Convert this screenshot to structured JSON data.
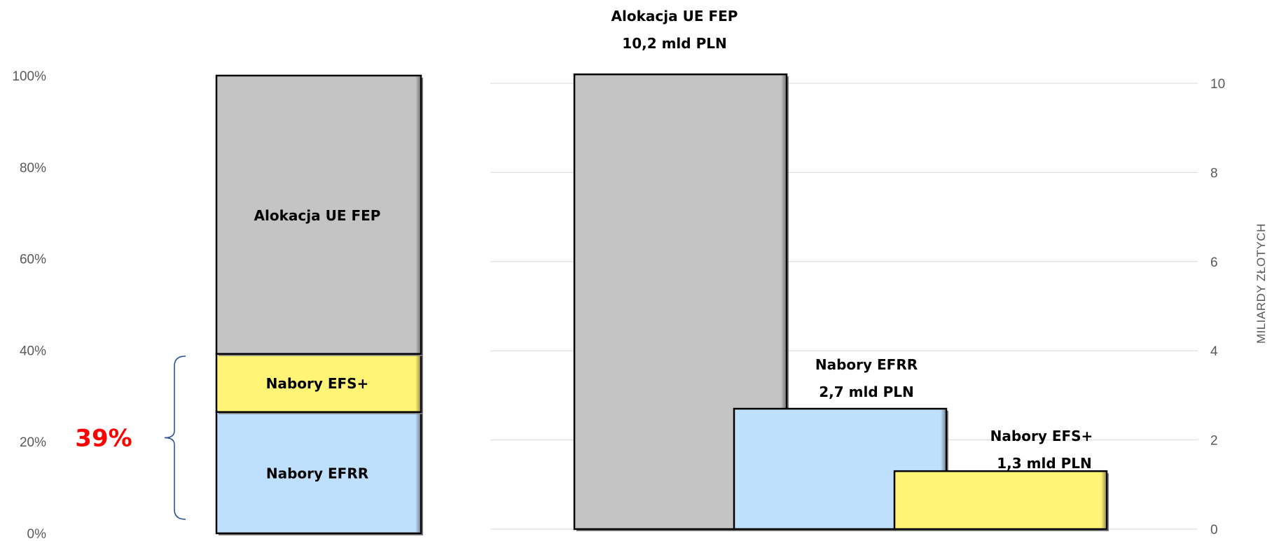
{
  "chart_data": [
    {
      "type": "bar",
      "stacked": true,
      "orientation": "vertical",
      "title": "",
      "ylabel": "",
      "ylim": [
        0,
        100
      ],
      "y_ticks": [
        "0%",
        "20%",
        "40%",
        "60%",
        "80%",
        "100%"
      ],
      "segments": [
        {
          "name": "Nabory EFRR",
          "label": "Nabory EFRR",
          "value": 26.5,
          "color": "#bfe0fc"
        },
        {
          "name": "Nabory EFS+",
          "label": "Nabory EFS+",
          "value": 12.7,
          "color": "#fff475"
        },
        {
          "name": "Alokacja UE FEP",
          "label": "Alokacja UE FEP",
          "value": 60.8,
          "color": "#c4c4c4"
        }
      ],
      "annotation": {
        "text": "39%",
        "color": "#ff0000",
        "brace_from": 0,
        "brace_to": 39
      }
    },
    {
      "type": "bar",
      "orientation": "vertical",
      "overlapping_bars": true,
      "title": "",
      "ylabel": "MILIARDY ZŁOTYCH",
      "ylim": [
        0,
        10
      ],
      "y_ticks": [
        "0",
        "2",
        "4",
        "6",
        "8",
        "10"
      ],
      "grid": true,
      "axis_side": "right",
      "bars": [
        {
          "name": "Alokacja UE FEP",
          "value": 10.2,
          "color": "#c4c4c4",
          "label_lines": [
            "Alokacja UE FEP",
            "10,2 mld PLN"
          ]
        },
        {
          "name": "Nabory EFRR",
          "value": 2.7,
          "color": "#bfe0fc",
          "label_lines": [
            "Nabory EFRR",
            "2,7 mld PLN"
          ]
        },
        {
          "name": "Nabory EFS+",
          "value": 1.3,
          "color": "#fff475",
          "label_lines": [
            "Nabory EFS+",
            "1,3 mld PLN"
          ]
        }
      ]
    }
  ]
}
